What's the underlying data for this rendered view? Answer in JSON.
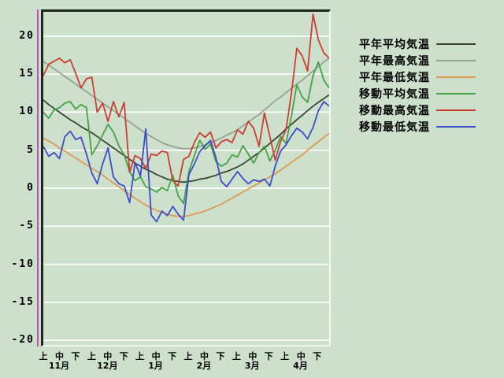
{
  "page": {
    "background_color": "#cce0cc",
    "frame_dark_color": "#1d281d",
    "frame_light_color": "#f2f7f2",
    "grid_color": "#ffffff",
    "cursor_line_color": "#bc4fbc"
  },
  "chart_data": {
    "type": "line",
    "title": "",
    "grid": "horizontal-white",
    "legend_position": "right",
    "y_axis": {
      "ticks": [
        20,
        15,
        10,
        5,
        0,
        -5,
        -10,
        -15,
        -20
      ],
      "min": -20.6,
      "max": 23.2
    },
    "x_axis": {
      "jun_labels": [
        "上",
        "中",
        "下"
      ],
      "months": [
        "11月",
        "12月",
        "1月",
        "2月",
        "3月",
        "4月"
      ],
      "points_per_month": 9
    },
    "series": [
      {
        "name": "平年平均気温",
        "color": "#3a453a",
        "values": [
          11.6,
          11.0,
          10.5,
          10.0,
          9.5,
          9.0,
          8.6,
          8.1,
          7.7,
          7.3,
          6.8,
          6.3,
          5.8,
          5.3,
          4.8,
          4.3,
          3.8,
          3.3,
          2.9,
          2.5,
          2.2,
          1.8,
          1.5,
          1.2,
          1.0,
          0.9,
          0.8,
          0.9,
          1.0,
          1.2,
          1.3,
          1.5,
          1.7,
          2.0,
          2.2,
          2.5,
          2.8,
          3.2,
          3.7,
          4.2,
          4.7,
          5.3,
          5.9,
          6.5,
          7.1,
          7.8,
          8.4,
          9.0,
          9.6,
          10.2,
          10.8,
          11.3,
          11.8,
          12.3
        ]
      },
      {
        "name": "平年最高気温",
        "color": "#94a394",
        "values": [
          16.7,
          16.2,
          15.7,
          15.2,
          14.7,
          14.2,
          13.7,
          13.2,
          12.7,
          12.2,
          11.7,
          11.2,
          10.7,
          10.2,
          9.7,
          9.2,
          8.7,
          8.2,
          7.7,
          7.2,
          6.8,
          6.4,
          6.0,
          5.7,
          5.5,
          5.3,
          5.2,
          5.2,
          5.3,
          5.5,
          5.7,
          6.0,
          6.3,
          6.6,
          7.0,
          7.3,
          7.7,
          8.2,
          8.7,
          9.2,
          9.7,
          10.3,
          10.9,
          11.5,
          12.0,
          12.6,
          13.1,
          13.7,
          14.2,
          14.8,
          15.4,
          16.0,
          16.6,
          17.1
        ]
      },
      {
        "name": "平年最低気温",
        "color": "#dd9a55",
        "values": [
          6.6,
          6.2,
          5.8,
          5.3,
          4.9,
          4.4,
          4.0,
          3.5,
          3.1,
          2.6,
          2.2,
          1.7,
          1.2,
          0.7,
          0.2,
          -0.3,
          -0.8,
          -1.3,
          -1.8,
          -2.2,
          -2.6,
          -2.9,
          -3.2,
          -3.4,
          -3.6,
          -3.7,
          -3.7,
          -3.6,
          -3.4,
          -3.2,
          -3.0,
          -2.7,
          -2.4,
          -2.1,
          -1.7,
          -1.3,
          -0.9,
          -0.5,
          -0.1,
          0.3,
          0.7,
          1.1,
          1.5,
          1.9,
          2.4,
          2.9,
          3.4,
          3.9,
          4.4,
          5.0,
          5.6,
          6.1,
          6.7,
          7.2
        ]
      },
      {
        "name": "移動平均気温",
        "color": "#44a244",
        "values": [
          10.0,
          9.2,
          10.3,
          10.6,
          11.2,
          11.4,
          10.4,
          11.0,
          10.6,
          4.4,
          5.6,
          7.0,
          8.4,
          7.4,
          5.6,
          4.4,
          2.2,
          1.0,
          1.5,
          0.2,
          -0.1,
          -0.5,
          0.1,
          -0.3,
          1.7,
          -1.0,
          -2.0,
          2.2,
          4.3,
          6.3,
          5.1,
          5.8,
          3.5,
          2.9,
          3.3,
          4.4,
          4.1,
          5.6,
          4.5,
          3.3,
          4.7,
          5.5,
          3.6,
          5.0,
          6.8,
          5.9,
          9.5,
          13.6,
          12.0,
          11.3,
          14.8,
          16.6,
          14.2,
          13.2
        ]
      },
      {
        "name": "移動最高気温",
        "color": "#cc3d30",
        "values": [
          14.8,
          16.3,
          16.7,
          17.1,
          16.5,
          16.9,
          15.1,
          13.2,
          14.4,
          14.6,
          10.0,
          11.2,
          8.8,
          11.4,
          9.4,
          11.3,
          2.1,
          4.3,
          3.9,
          2.6,
          4.5,
          4.3,
          4.9,
          4.7,
          1.0,
          0.3,
          3.8,
          4.2,
          6.0,
          7.3,
          6.7,
          7.4,
          5.3,
          6.1,
          6.4,
          6.0,
          7.7,
          7.1,
          8.8,
          7.9,
          5.5,
          9.9,
          6.8,
          3.7,
          6.2,
          7.7,
          12.5,
          18.4,
          17.4,
          15.4,
          22.9,
          19.5,
          17.8,
          17.1
        ]
      },
      {
        "name": "移動最低気温",
        "color": "#3c4ccc",
        "values": [
          5.5,
          4.2,
          4.7,
          3.9,
          6.8,
          7.5,
          6.4,
          6.7,
          4.5,
          2.0,
          0.6,
          3.2,
          5.3,
          1.5,
          0.6,
          0.3,
          -1.9,
          3.4,
          1.6,
          7.8,
          -3.5,
          -4.4,
          -3.0,
          -3.6,
          -2.4,
          -3.4,
          -4.2,
          1.8,
          3.2,
          4.8,
          5.6,
          6.3,
          4.0,
          0.9,
          0.2,
          1.2,
          2.2,
          1.3,
          0.6,
          1.1,
          0.9,
          1.2,
          0.3,
          2.9,
          4.9,
          5.7,
          6.9,
          7.9,
          7.4,
          6.5,
          8.0,
          10.2,
          11.4,
          10.8
        ]
      }
    ]
  }
}
